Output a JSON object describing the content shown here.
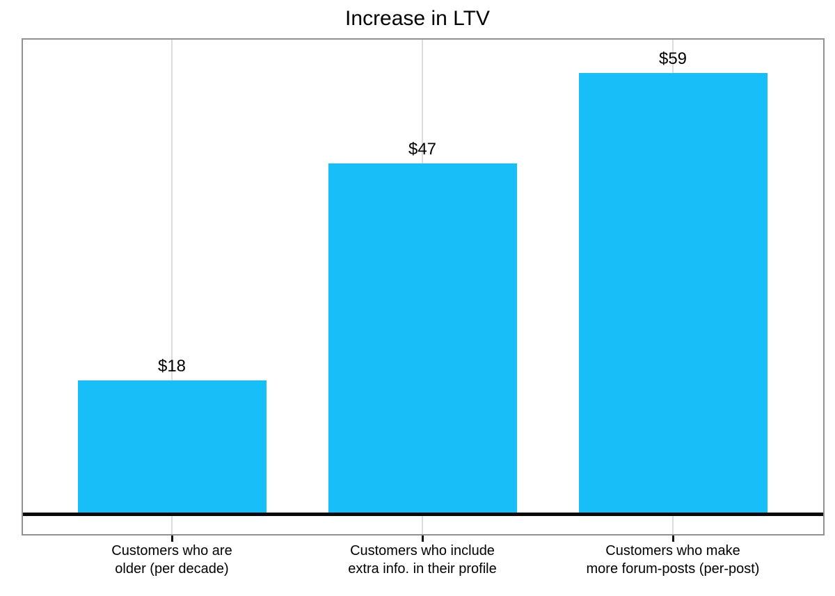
{
  "chart_data": {
    "type": "bar",
    "title": "Increase in LTV",
    "categories": [
      "Customers who are older (per decade)",
      "Customers who include extra info. in their profile",
      "Customers who make more forum-posts (per-post)"
    ],
    "category_lines": [
      [
        "Customers who are",
        "older (per decade)"
      ],
      [
        "Customers who include",
        "extra info. in their profile"
      ],
      [
        "Customers who make",
        "more forum-posts (per-post)"
      ]
    ],
    "values": [
      18,
      47,
      59
    ],
    "value_labels": [
      "$18",
      "$47",
      "$59"
    ],
    "xlabel": "",
    "ylabel": "",
    "ylim": [
      0,
      63.5
    ],
    "grid": "vertical gridline at each category center",
    "legend": "none",
    "colors": {
      "bar_fill": "#18BEF8",
      "gridline": "#DBDBDB",
      "panel_border": "#929292",
      "zero_line": "#0a0a0a",
      "tick": "#111111",
      "text": "#000000"
    }
  }
}
